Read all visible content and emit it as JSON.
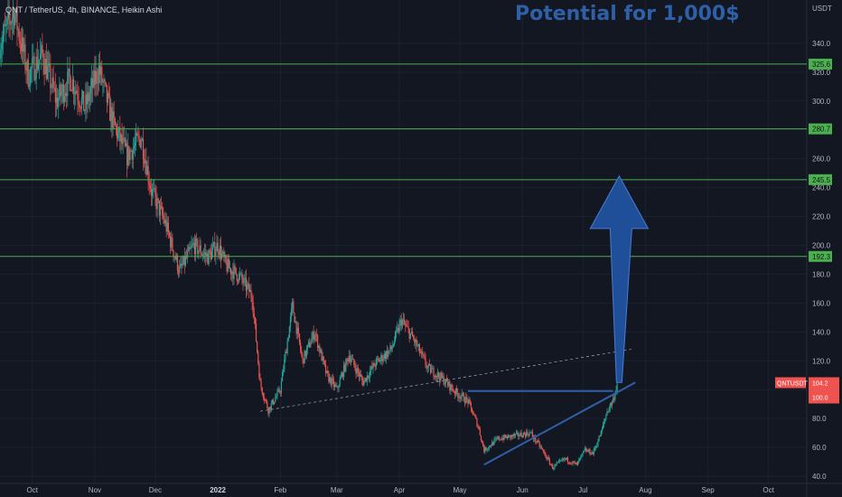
{
  "header": {
    "title": "QNT / TetherUS, 4h, BINANCE, Heikin Ashi"
  },
  "annotation": {
    "text": "Potential for 1,000$"
  },
  "axis": {
    "unit": "USDT"
  },
  "colors": {
    "background": "#131722",
    "up": "#26a69a",
    "down": "#ef5350",
    "level_line": "#4caf50",
    "annotation": "#2f5fa6",
    "trendline": "#2f5fa6",
    "arrow_fill": "#1f4f99"
  },
  "chart_data": {
    "type": "candlestick",
    "y_unit": "USDT",
    "ylim": [
      35,
      370
    ],
    "y_ticks": [
      40,
      60,
      80,
      100,
      120,
      140,
      160,
      180,
      200,
      220,
      240,
      260,
      280,
      300,
      320,
      340
    ],
    "x_ticks": [
      {
        "label": "Oct",
        "date": "2021-10-01"
      },
      {
        "label": "Nov",
        "date": "2021-11-01"
      },
      {
        "label": "Dec",
        "date": "2021-12-01"
      },
      {
        "label": "2022",
        "date": "2022-01-01",
        "bold": true
      },
      {
        "label": "Feb",
        "date": "2022-02-01"
      },
      {
        "label": "Mar",
        "date": "2022-03-01"
      },
      {
        "label": "Apr",
        "date": "2022-04-01"
      },
      {
        "label": "May",
        "date": "2022-05-01"
      },
      {
        "label": "Jun",
        "date": "2022-06-01"
      },
      {
        "label": "Jul",
        "date": "2022-07-01"
      },
      {
        "label": "Aug",
        "date": "2022-08-01"
      },
      {
        "label": "Sep",
        "date": "2022-09-01"
      },
      {
        "label": "Oct",
        "date": "2022-10-01"
      }
    ],
    "x_range": [
      "2021-09-15",
      "2022-10-20"
    ],
    "price_path": [
      [
        "2021-09-15",
        340
      ],
      [
        "2021-09-22",
        362
      ],
      [
        "2021-09-29",
        318
      ],
      [
        "2021-10-06",
        332
      ],
      [
        "2021-10-13",
        300
      ],
      [
        "2021-10-20",
        316
      ],
      [
        "2021-10-27",
        295
      ],
      [
        "2021-11-03",
        322
      ],
      [
        "2021-11-10",
        285
      ],
      [
        "2021-11-17",
        262
      ],
      [
        "2021-11-24",
        275
      ],
      [
        "2021-11-29",
        238
      ],
      [
        "2021-12-06",
        215
      ],
      [
        "2021-12-13",
        182
      ],
      [
        "2021-12-20",
        200
      ],
      [
        "2021-12-27",
        192
      ],
      [
        "2022-01-01",
        200
      ],
      [
        "2022-01-05",
        186
      ],
      [
        "2022-01-12",
        178
      ],
      [
        "2022-01-18",
        165
      ],
      [
        "2022-01-22",
        104
      ],
      [
        "2022-01-26",
        86
      ],
      [
        "2022-02-01",
        100
      ],
      [
        "2022-02-07",
        158
      ],
      [
        "2022-02-12",
        120
      ],
      [
        "2022-02-18",
        140
      ],
      [
        "2022-02-24",
        110
      ],
      [
        "2022-03-01",
        100
      ],
      [
        "2022-03-07",
        124
      ],
      [
        "2022-03-14",
        105
      ],
      [
        "2022-03-20",
        118
      ],
      [
        "2022-03-28",
        128
      ],
      [
        "2022-04-02",
        148
      ],
      [
        "2022-04-08",
        135
      ],
      [
        "2022-04-15",
        115
      ],
      [
        "2022-04-22",
        108
      ],
      [
        "2022-04-29",
        98
      ],
      [
        "2022-05-05",
        92
      ],
      [
        "2022-05-10",
        75
      ],
      [
        "2022-05-13",
        58
      ],
      [
        "2022-05-20",
        66
      ],
      [
        "2022-05-28",
        68
      ],
      [
        "2022-06-05",
        70
      ],
      [
        "2022-06-10",
        60
      ],
      [
        "2022-06-16",
        46
      ],
      [
        "2022-06-22",
        52
      ],
      [
        "2022-06-28",
        48
      ],
      [
        "2022-07-02",
        58
      ],
      [
        "2022-07-06",
        56
      ],
      [
        "2022-07-10",
        70
      ],
      [
        "2022-07-13",
        85
      ],
      [
        "2022-07-16",
        93
      ],
      [
        "2022-07-18",
        104
      ]
    ],
    "horizontal_levels": [
      {
        "value": 325.6,
        "label": "325.6"
      },
      {
        "value": 280.7,
        "label": "280.7"
      },
      {
        "value": 245.5,
        "label": "245.5"
      },
      {
        "value": 192.3,
        "label": "192.3"
      }
    ],
    "current_price": {
      "symbol": "QNTUSDT",
      "value": 104.2,
      "label": "104.2",
      "secondary": "100.0"
    },
    "trendlines": [
      {
        "style": "solid",
        "from": [
          "2022-05-13",
          48
        ],
        "to": [
          "2022-07-27",
          105
        ]
      },
      {
        "style": "dashed",
        "from": [
          "2022-01-22",
          85
        ],
        "to": [
          "2022-07-25",
          128
        ]
      },
      {
        "style": "solid",
        "from": [
          "2022-05-05",
          99
        ],
        "to": [
          "2022-07-16",
          99
        ]
      }
    ],
    "arrow": {
      "from": [
        "2022-07-19",
        105
      ],
      "to": [
        "2022-07-19",
        248
      ],
      "direction": "up"
    }
  }
}
